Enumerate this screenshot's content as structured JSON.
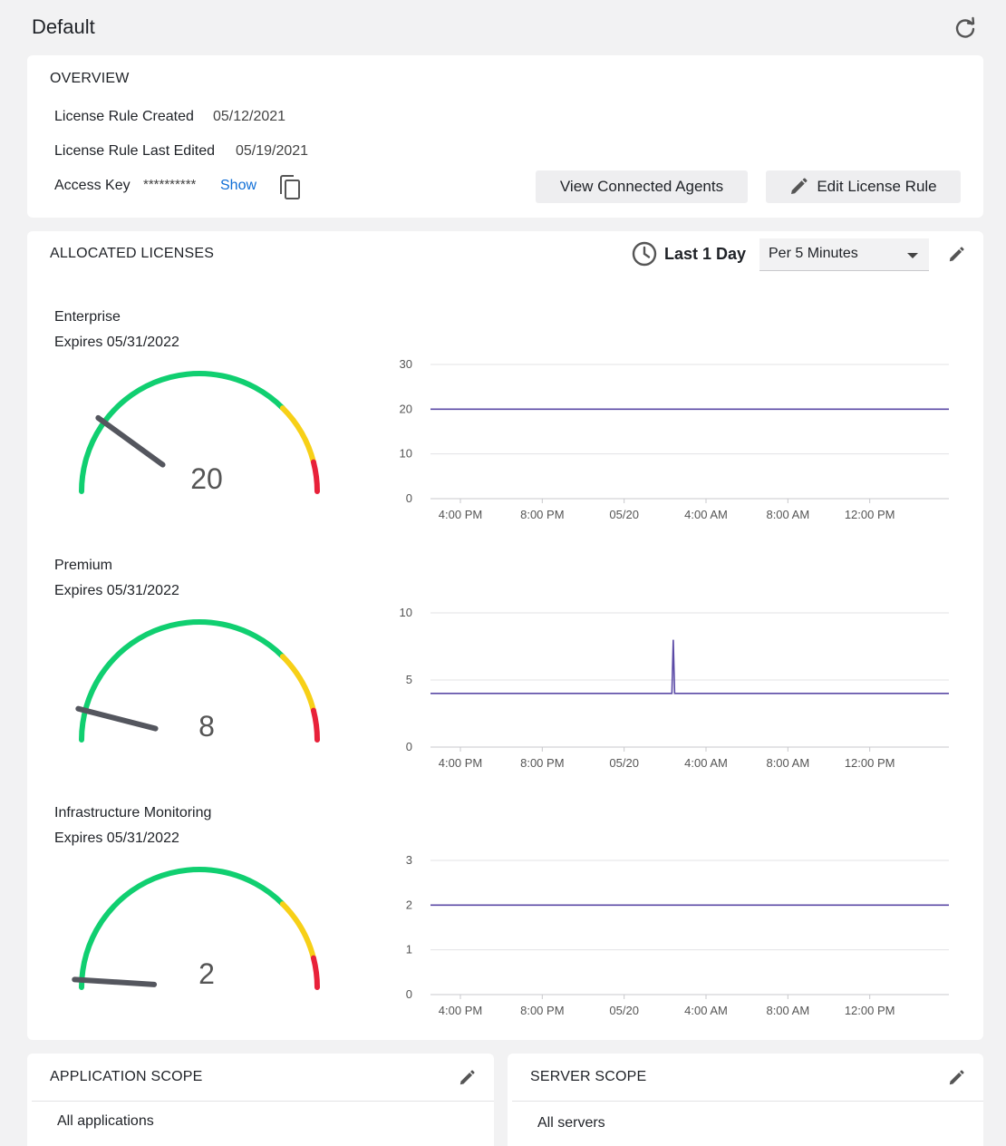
{
  "page": {
    "title": "Default"
  },
  "overview": {
    "title": "OVERVIEW",
    "created_label": "License Rule Created",
    "created_value": "05/12/2021",
    "edited_label": "License Rule Last Edited",
    "edited_value": "05/19/2021",
    "access_key_label": "Access Key",
    "access_key_value": "**********",
    "show_label": "Show",
    "view_agents_label": "View Connected Agents",
    "edit_rule_label": "Edit License Rule"
  },
  "allocated": {
    "title": "ALLOCATED LICENSES",
    "time_range_label": "Last 1 Day",
    "granularity_selected": "Per 5 Minutes",
    "licenses": [
      {
        "name": "Enterprise",
        "expires": "Expires 05/31/2022",
        "count": "20",
        "gauge_fraction": 0.2
      },
      {
        "name": "Premium",
        "expires": "Expires 05/31/2022",
        "count": "8",
        "gauge_fraction": 0.08
      },
      {
        "name": "Infrastructure Monitoring",
        "expires": "Expires 05/31/2022",
        "count": "2",
        "gauge_fraction": 0.02
      }
    ]
  },
  "colors": {
    "green": "#10cf70",
    "yellow": "#f7d017",
    "red": "#e8213a",
    "needle": "#54565e",
    "line": "#5b4aa6",
    "link": "#0f6ed6"
  },
  "chart_data": [
    {
      "type": "line",
      "title": "Enterprise",
      "x": [
        "4:00 PM",
        "8:00 PM",
        "05/20",
        "4:00 AM",
        "8:00 AM",
        "12:00 PM"
      ],
      "x_ticks": [
        "4:00 PM",
        "8:00 PM",
        "05/20",
        "4:00 AM",
        "8:00 AM",
        "12:00 PM"
      ],
      "y_ticks": [
        "0",
        "10",
        "20",
        "30"
      ],
      "ylim": [
        0,
        30
      ],
      "series": [
        {
          "values": [
            20,
            20,
            20,
            20,
            20,
            20
          ]
        }
      ],
      "spike": null
    },
    {
      "type": "line",
      "title": "Premium",
      "x": [
        "4:00 PM",
        "8:00 PM",
        "05/20",
        "4:00 AM",
        "8:00 AM",
        "12:00 PM"
      ],
      "x_ticks": [
        "4:00 PM",
        "8:00 PM",
        "05/20",
        "4:00 AM",
        "8:00 AM",
        "12:00 PM"
      ],
      "y_ticks": [
        "0",
        "5",
        "10"
      ],
      "ylim": [
        0,
        10
      ],
      "series": [
        {
          "values": [
            4,
            4,
            4,
            4,
            4,
            4
          ]
        }
      ],
      "spike": {
        "after_index": 2,
        "offset_fraction": 0.6,
        "value": 8
      }
    },
    {
      "type": "line",
      "title": "Infrastructure Monitoring",
      "x": [
        "4:00 PM",
        "8:00 PM",
        "05/20",
        "4:00 AM",
        "8:00 AM",
        "12:00 PM"
      ],
      "x_ticks": [
        "4:00 PM",
        "8:00 PM",
        "05/20",
        "4:00 AM",
        "8:00 AM",
        "12:00 PM"
      ],
      "y_ticks": [
        "0",
        "1",
        "2",
        "3"
      ],
      "ylim": [
        0,
        3
      ],
      "series": [
        {
          "values": [
            2,
            2,
            2,
            2,
            2,
            2
          ]
        }
      ],
      "spike": null
    }
  ],
  "app_scope": {
    "title": "APPLICATION SCOPE",
    "value": "All applications"
  },
  "server_scope": {
    "title": "SERVER SCOPE",
    "value": "All servers"
  }
}
